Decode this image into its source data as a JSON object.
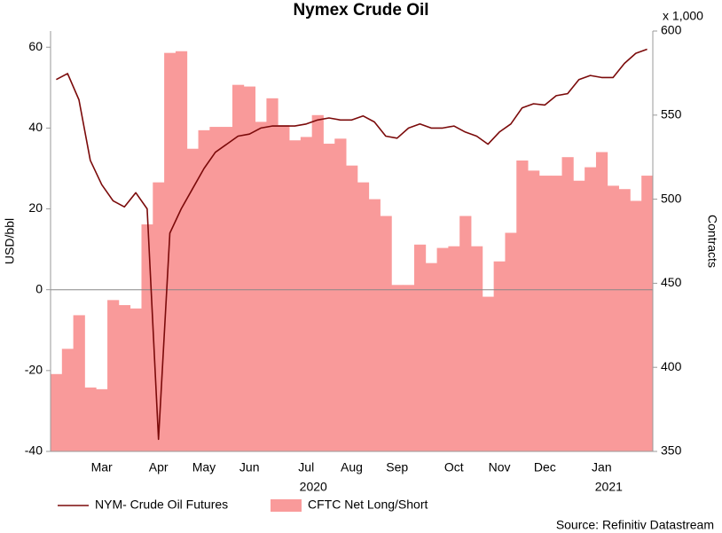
{
  "chart_data": {
    "type": "combo",
    "title": "Nymex Crude Oil",
    "y_label": "USD/bbl",
    "y2_label": "Contracts",
    "y2_unit": "x 1,000",
    "source": "Source: Refinitiv Datastream",
    "categories": [
      null,
      null,
      null,
      null,
      "Mar",
      null,
      null,
      null,
      null,
      "Apr",
      null,
      null,
      null,
      "May",
      null,
      null,
      null,
      "Jun",
      null,
      null,
      null,
      null,
      "Jul",
      null,
      null,
      null,
      "Aug",
      null,
      null,
      null,
      "Sep",
      null,
      null,
      null,
      null,
      "Oct",
      null,
      null,
      null,
      "Nov",
      null,
      null,
      null,
      "Dec",
      null,
      null,
      null,
      null,
      "Jan",
      null,
      null,
      null,
      null
    ],
    "years": [
      null,
      null,
      null,
      null,
      null,
      null,
      null,
      null,
      null,
      null,
      null,
      null,
      null,
      null,
      null,
      null,
      null,
      null,
      null,
      null,
      null,
      null,
      "2020",
      null,
      null,
      null,
      null,
      null,
      null,
      null,
      null,
      null,
      null,
      null,
      null,
      null,
      null,
      null,
      null,
      null,
      null,
      null,
      null,
      null,
      null,
      null,
      null,
      null,
      "2021",
      null,
      null,
      null,
      null
    ],
    "ylim": [
      -40,
      64
    ],
    "yticks": [
      -40,
      -20,
      0,
      20,
      40,
      60
    ],
    "y2lim": [
      350,
      600
    ],
    "y2ticks": [
      350,
      400,
      450,
      500,
      550,
      600
    ],
    "series": [
      {
        "name": "NYM- Crude Oil Futures",
        "type": "line",
        "color": "#7b0a0a",
        "values": [
          52,
          53.5,
          47,
          32,
          26,
          22,
          20.5,
          24,
          20,
          -37,
          14,
          20,
          25,
          30,
          34,
          36,
          38,
          38.5,
          40,
          40.5,
          40.5,
          40.5,
          41,
          42,
          42.5,
          42,
          42,
          43,
          41.5,
          38,
          37.5,
          40,
          41,
          40,
          40,
          40.5,
          39,
          38,
          36,
          39,
          41,
          45,
          46,
          45.7,
          48,
          48.5,
          52,
          53,
          52.5,
          52.5,
          56,
          58.5,
          59.5
        ]
      },
      {
        "name": "CFTC Net Long/Short",
        "type": "area",
        "axis": "y2",
        "color": "#f99a9a",
        "values": [
          396,
          411,
          431,
          388,
          387,
          440,
          437,
          435,
          485,
          510,
          587,
          588,
          530,
          541,
          543,
          543,
          568,
          567,
          546,
          560,
          544,
          535,
          537,
          550,
          533,
          536,
          520,
          510,
          500,
          490,
          449,
          449,
          473,
          462,
          471,
          472,
          490,
          472,
          442,
          463,
          480,
          523,
          517,
          514,
          514,
          525,
          511,
          519,
          528,
          508,
          506,
          499,
          514
        ]
      }
    ]
  }
}
